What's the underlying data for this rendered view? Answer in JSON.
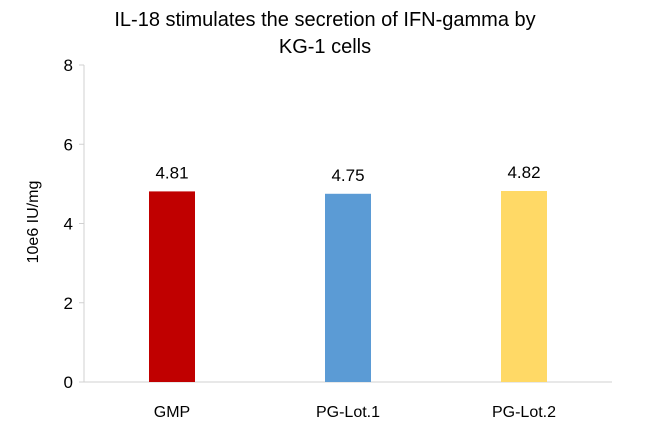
{
  "chart_data": {
    "type": "bar",
    "title_lines": [
      "IL-18 stimulates the secretion of IFN-gamma by",
      "KG-1 cells"
    ],
    "xlabel": "",
    "ylabel": "10e6 IU/mg",
    "ylim": [
      0,
      8
    ],
    "yticks": [
      0,
      2,
      4,
      6,
      8
    ],
    "grid": false,
    "legend": "none",
    "categories": [
      "GMP",
      "PG-Lot.1",
      "PG-Lot.2"
    ],
    "values": [
      4.81,
      4.75,
      4.82
    ],
    "value_labels": [
      "4.81",
      "4.75",
      "4.82"
    ],
    "colors": [
      "#c00000",
      "#5b9bd5",
      "#ffd966"
    ]
  }
}
